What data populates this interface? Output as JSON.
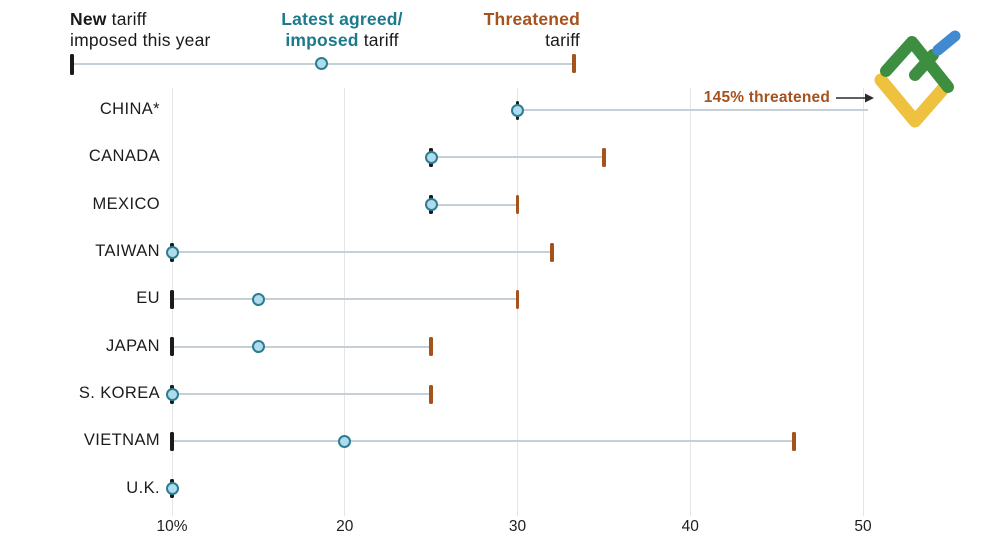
{
  "legend": {
    "new": {
      "bold": "New",
      "rest": " tariff",
      "line2": "imposed this year"
    },
    "agreed": {
      "line1": "Latest agreed/",
      "line2_bold": "imposed",
      "line2_rest": " tariff"
    },
    "threatened": {
      "bold": "Threatened",
      "line2": "tariff"
    }
  },
  "annotation": {
    "text": "145% threatened"
  },
  "colors": {
    "teal_text": "#1d7a8c",
    "orange_marker": "#a5521c",
    "black_marker": "#1b1b1b",
    "circle_fill": "#aedcec",
    "circle_stroke": "#2d7d92",
    "connector_line": "#c6cfd6",
    "gridline": "#e2e6e9",
    "logo_green": "#3e8e41",
    "logo_blue": "#4189d0",
    "logo_yellow": "#eec13f"
  },
  "chart_data": {
    "type": "dumbbell",
    "title": "",
    "xlabel": "",
    "ylabel": "",
    "x_axis": {
      "tick_labels": [
        "10%",
        "20",
        "30",
        "40",
        "50"
      ],
      "tick_values": [
        10,
        20,
        30,
        40,
        50
      ],
      "range": [
        10,
        50
      ],
      "unit": "percent",
      "grid": true
    },
    "series_labels": {
      "new": "New tariff imposed this year",
      "agreed": "Latest agreed/imposed tariff",
      "threatened": "Threatened tariff"
    },
    "rows": [
      {
        "label": "CHINA*",
        "new": 30,
        "agreed": 30,
        "threatened": 145,
        "threatened_offchart": true
      },
      {
        "label": "CANADA",
        "new": 25,
        "agreed": 25,
        "threatened": 35
      },
      {
        "label": "MEXICO",
        "new": 25,
        "agreed": 25,
        "threatened": 30
      },
      {
        "label": "TAIWAN",
        "new": 10,
        "agreed": 10,
        "threatened": 32
      },
      {
        "label": "EU",
        "new": 10,
        "agreed": 15,
        "threatened": 30
      },
      {
        "label": "JAPAN",
        "new": 10,
        "agreed": 15,
        "threatened": 25
      },
      {
        "label": "S. KOREA",
        "new": 10,
        "agreed": 10,
        "threatened": 25
      },
      {
        "label": "VIETNAM",
        "new": 10,
        "agreed": 20,
        "threatened": 46
      },
      {
        "label": "U.K.",
        "new": 10,
        "agreed": 10,
        "threatened": null
      }
    ]
  }
}
